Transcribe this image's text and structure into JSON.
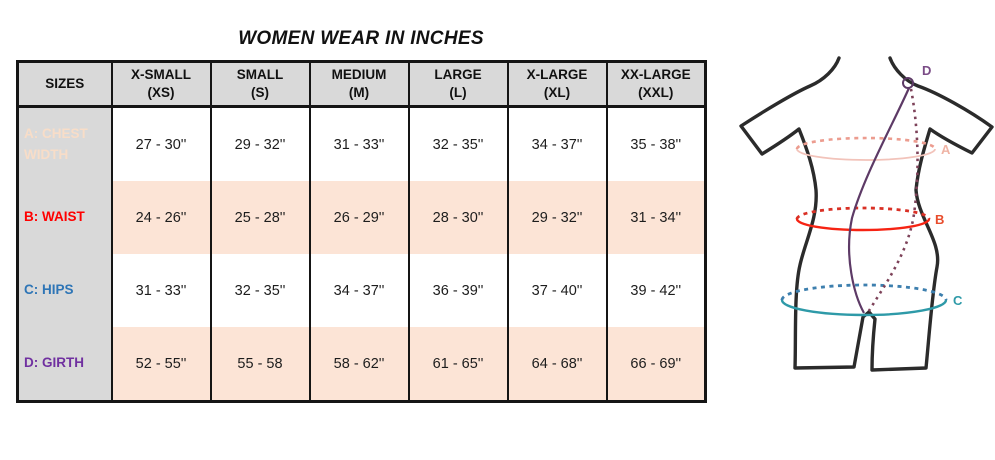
{
  "title": "WOMEN WEAR IN INCHES",
  "table": {
    "corner_label": "SIZES",
    "header_bg": "#d9d9d9",
    "label_col_bg": "#d9d9d9",
    "alt_row_bg": "#fce4d6",
    "columns": [
      {
        "name": "X-SMALL",
        "code": "(XS)"
      },
      {
        "name": "SMALL",
        "code": "(S)"
      },
      {
        "name": "MEDIUM",
        "code": "(M)"
      },
      {
        "name": "LARGE",
        "code": "(L)"
      },
      {
        "name": "X-LARGE",
        "code": "(XL)"
      },
      {
        "name": "XX-LARGE",
        "code": "(XXL)"
      }
    ],
    "rows": [
      {
        "id": "A",
        "label": "A: CHEST WIDTH",
        "label_color": "#f8ddc8",
        "row_bg": "#ffffff",
        "values": [
          "27 - 30''",
          "29 - 32''",
          "31 - 33''",
          "32 - 35''",
          "34 - 37''",
          "35 - 38''"
        ]
      },
      {
        "id": "B",
        "label": "B: WAIST",
        "label_color": "#ff0000",
        "row_bg": "#fce4d6",
        "values": [
          "24 - 26''",
          "25 - 28''",
          "26 - 29''",
          "28 - 30''",
          "29 - 32''",
          "31 - 34''"
        ]
      },
      {
        "id": "C",
        "label": "C: HIPS",
        "label_color": "#2e75b6",
        "row_bg": "#ffffff",
        "values": [
          "31 - 33''",
          "32 - 35''",
          "34 - 37''",
          "36 - 39''",
          "37 - 40''",
          "39 - 42''"
        ]
      },
      {
        "id": "D",
        "label": "D: GIRTH",
        "label_color": "#7030a0",
        "row_bg": "#fce4d6",
        "values": [
          "52 - 55''",
          "55 - 58",
          "58 - 62''",
          "61 - 65''",
          "64 - 68''",
          "66 - 69''"
        ]
      }
    ]
  },
  "diagram": {
    "figure": "women-bodysuit-outline",
    "outline_color": "#2b2b2b",
    "labels": {
      "A": {
        "text": "A",
        "color": "#efb3a4"
      },
      "B": {
        "text": "B",
        "color": "#e84c2c"
      },
      "C": {
        "text": "C",
        "color": "#2e9aa8"
      },
      "D": {
        "text": "D",
        "color": "#7a4b86"
      }
    },
    "measures": {
      "chest": {
        "solid": "#f2c3ba",
        "dashed": "#ec9c8f"
      },
      "waist": {
        "solid": "#f62313",
        "dashed": "#d93025"
      },
      "hips": {
        "solid": "#2e9aa8",
        "dashed": "#3d7fae"
      },
      "girth": {
        "solid": "#5d3a66",
        "dashed": "#7d4259"
      }
    }
  }
}
